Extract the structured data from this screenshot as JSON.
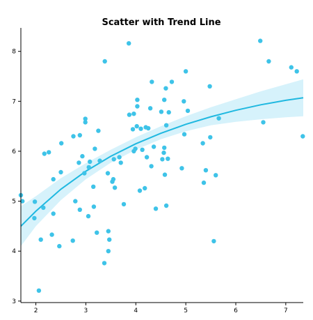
{
  "chart_data": {
    "type": "scatter",
    "title": "Scatter with Trend Line",
    "xlabel": "",
    "ylabel": "",
    "xlim": [
      1.7,
      7.35
    ],
    "ylim": [
      2.97,
      8.47
    ],
    "xticks": [
      2,
      3,
      4,
      5,
      6,
      7
    ],
    "yticks": [
      3,
      4,
      5,
      6,
      7,
      8
    ],
    "grid": false,
    "legend": "none",
    "colors": {
      "points": "#3ec3e8",
      "trend": "#1fb8e0",
      "band": "#d6f2fb"
    },
    "points": [
      [
        1.7,
        5.12
      ],
      [
        1.73,
        5.0
      ],
      [
        1.97,
        4.66
      ],
      [
        1.98,
        4.99
      ],
      [
        2.06,
        3.21
      ],
      [
        2.1,
        4.23
      ],
      [
        2.15,
        4.87
      ],
      [
        2.17,
        5.95
      ],
      [
        2.26,
        5.98
      ],
      [
        2.32,
        4.33
      ],
      [
        2.35,
        4.75
      ],
      [
        2.35,
        5.44
      ],
      [
        2.47,
        4.1
      ],
      [
        2.5,
        5.58
      ],
      [
        2.51,
        6.16
      ],
      [
        2.74,
        4.21
      ],
      [
        2.75,
        6.3
      ],
      [
        2.79,
        5.0
      ],
      [
        2.86,
        5.77
      ],
      [
        2.88,
        4.83
      ],
      [
        2.88,
        6.32
      ],
      [
        2.93,
        5.9
      ],
      [
        2.97,
        5.56
      ],
      [
        2.99,
        6.65
      ],
      [
        2.99,
        6.58
      ],
      [
        3.05,
        4.7
      ],
      [
        3.06,
        5.68
      ],
      [
        3.08,
        5.79
      ],
      [
        3.15,
        5.29
      ],
      [
        3.16,
        4.89
      ],
      [
        3.18,
        6.05
      ],
      [
        3.22,
        4.37
      ],
      [
        3.25,
        6.41
      ],
      [
        3.28,
        5.81
      ],
      [
        3.37,
        3.76
      ],
      [
        3.38,
        7.8
      ],
      [
        3.44,
        5.56
      ],
      [
        3.45,
        4.4
      ],
      [
        3.45,
        4.0
      ],
      [
        3.47,
        4.23
      ],
      [
        3.53,
        5.39
      ],
      [
        3.55,
        5.44
      ],
      [
        3.56,
        5.84
      ],
      [
        3.58,
        5.27
      ],
      [
        3.67,
        5.88
      ],
      [
        3.7,
        5.77
      ],
      [
        3.76,
        4.94
      ],
      [
        3.86,
        8.16
      ],
      [
        3.87,
        6.73
      ],
      [
        3.94,
        6.44
      ],
      [
        3.96,
        6.75
      ],
      [
        3.96,
        6.0
      ],
      [
        3.99,
        6.05
      ],
      [
        4.02,
        6.5
      ],
      [
        4.03,
        7.03
      ],
      [
        4.03,
        6.9
      ],
      [
        4.08,
        5.21
      ],
      [
        4.1,
        6.45
      ],
      [
        4.13,
        6.03
      ],
      [
        4.18,
        5.26
      ],
      [
        4.2,
        6.48
      ],
      [
        4.22,
        5.88
      ],
      [
        4.25,
        6.46
      ],
      [
        4.29,
        6.86
      ],
      [
        4.31,
        5.7
      ],
      [
        4.32,
        7.39
      ],
      [
        4.36,
        6.09
      ],
      [
        4.4,
        4.85
      ],
      [
        4.51,
        6.79
      ],
      [
        4.53,
        5.84
      ],
      [
        4.56,
        5.97
      ],
      [
        4.57,
        7.03
      ],
      [
        4.57,
        6.07
      ],
      [
        4.58,
        5.53
      ],
      [
        4.6,
        7.26
      ],
      [
        4.61,
        4.91
      ],
      [
        4.61,
        6.52
      ],
      [
        4.64,
        5.85
      ],
      [
        4.66,
        6.78
      ],
      [
        4.72,
        7.39
      ],
      [
        4.92,
        5.66
      ],
      [
        4.96,
        7.0
      ],
      [
        4.97,
        6.34
      ],
      [
        5.0,
        7.6
      ],
      [
        5.04,
        6.81
      ],
      [
        5.34,
        6.16
      ],
      [
        5.36,
        5.37
      ],
      [
        5.4,
        5.62
      ],
      [
        5.48,
        7.3
      ],
      [
        5.49,
        6.28
      ],
      [
        5.56,
        4.2
      ],
      [
        5.6,
        5.52
      ],
      [
        5.66,
        6.66
      ],
      [
        6.49,
        8.21
      ],
      [
        6.55,
        6.58
      ],
      [
        6.66,
        7.8
      ],
      [
        7.11,
        7.68
      ],
      [
        7.22,
        7.6
      ],
      [
        7.34,
        6.3
      ]
    ],
    "trend": {
      "x": [
        1.7,
        2.0,
        2.5,
        3.0,
        3.5,
        4.0,
        4.5,
        5.0,
        5.5,
        6.0,
        6.5,
        7.0,
        7.35
      ],
      "y": [
        4.5,
        4.8,
        5.24,
        5.6,
        5.9,
        6.15,
        6.36,
        6.54,
        6.69,
        6.82,
        6.93,
        7.02,
        7.07
      ],
      "lower": [
        4.1,
        4.5,
        5.02,
        5.44,
        5.77,
        6.03,
        6.24,
        6.4,
        6.52,
        6.59,
        6.64,
        6.68,
        6.7
      ],
      "upper": [
        4.9,
        5.1,
        5.46,
        5.76,
        6.03,
        6.28,
        6.5,
        6.7,
        6.88,
        7.04,
        7.2,
        7.34,
        7.44
      ]
    }
  }
}
